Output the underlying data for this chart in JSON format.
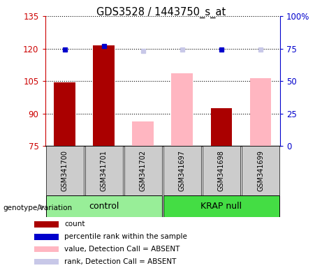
{
  "title": "GDS3528 / 1443750_s_at",
  "samples": [
    "GSM341700",
    "GSM341701",
    "GSM341702",
    "GSM341697",
    "GSM341698",
    "GSM341699"
  ],
  "count_values": [
    104.5,
    121.5,
    null,
    null,
    92.5,
    null
  ],
  "rank_values": [
    119.5,
    121.0,
    null,
    null,
    119.5,
    null
  ],
  "absent_value_values": [
    null,
    null,
    86.5,
    108.5,
    null,
    106.5
  ],
  "absent_rank_values": [
    null,
    null,
    119.0,
    119.5,
    null,
    119.5
  ],
  "ymin": 75,
  "ymax": 135,
  "yticks_left": [
    75,
    90,
    105,
    120,
    135
  ],
  "y_right_map": {
    "75": 0,
    "90": 25,
    "105": 50,
    "120": 75,
    "135": 100
  },
  "count_color": "#aa0000",
  "rank_color": "#0000cc",
  "absent_value_color": "#ffb6c1",
  "absent_rank_color": "#c8c8e8",
  "left_label_color": "#cc0000",
  "right_label_color": "#0000cc",
  "group_control_color": "#98ee98",
  "group_krap_color": "#44dd44",
  "sample_box_color": "#cccccc",
  "groups_info": [
    {
      "label": "control",
      "start": 0,
      "end": 2
    },
    {
      "label": "KRAP null",
      "start": 3,
      "end": 5
    }
  ],
  "legend_items": [
    {
      "color": "#aa0000",
      "label": "count"
    },
    {
      "color": "#0000cc",
      "label": "percentile rank within the sample"
    },
    {
      "color": "#ffb6c1",
      "label": "value, Detection Call = ABSENT"
    },
    {
      "color": "#c8c8e8",
      "label": "rank, Detection Call = ABSENT"
    }
  ]
}
